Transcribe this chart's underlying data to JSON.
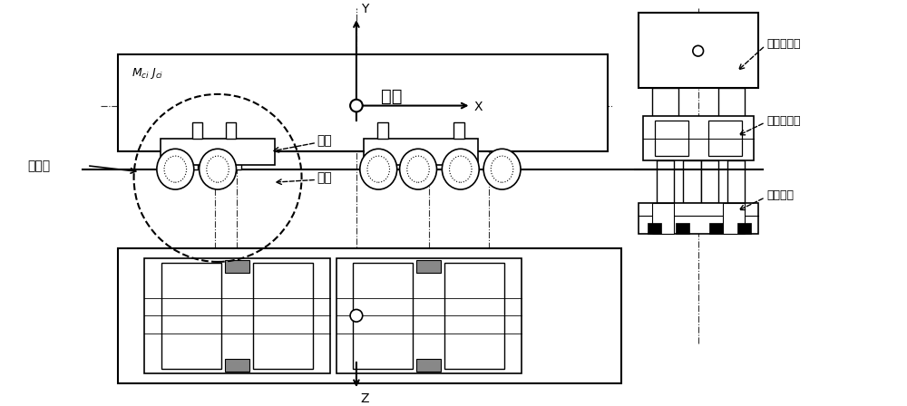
{
  "bg_color": "#ffffff",
  "line_color": "#000000",
  "fig_width": 10.0,
  "fig_height": 4.48,
  "labels": {
    "car_body": "车体",
    "bogie": "转向架",
    "frame": "构架",
    "wheelset": "轮对",
    "first_suspension": "第一系悬挂",
    "second_suspension": "第二系悬挂",
    "wheel_rail": "轮轨接触",
    "mass": "Mₑᵢ Jₑᵢ",
    "x_axis": "X",
    "y_axis": "Y",
    "z_axis": "Z"
  }
}
